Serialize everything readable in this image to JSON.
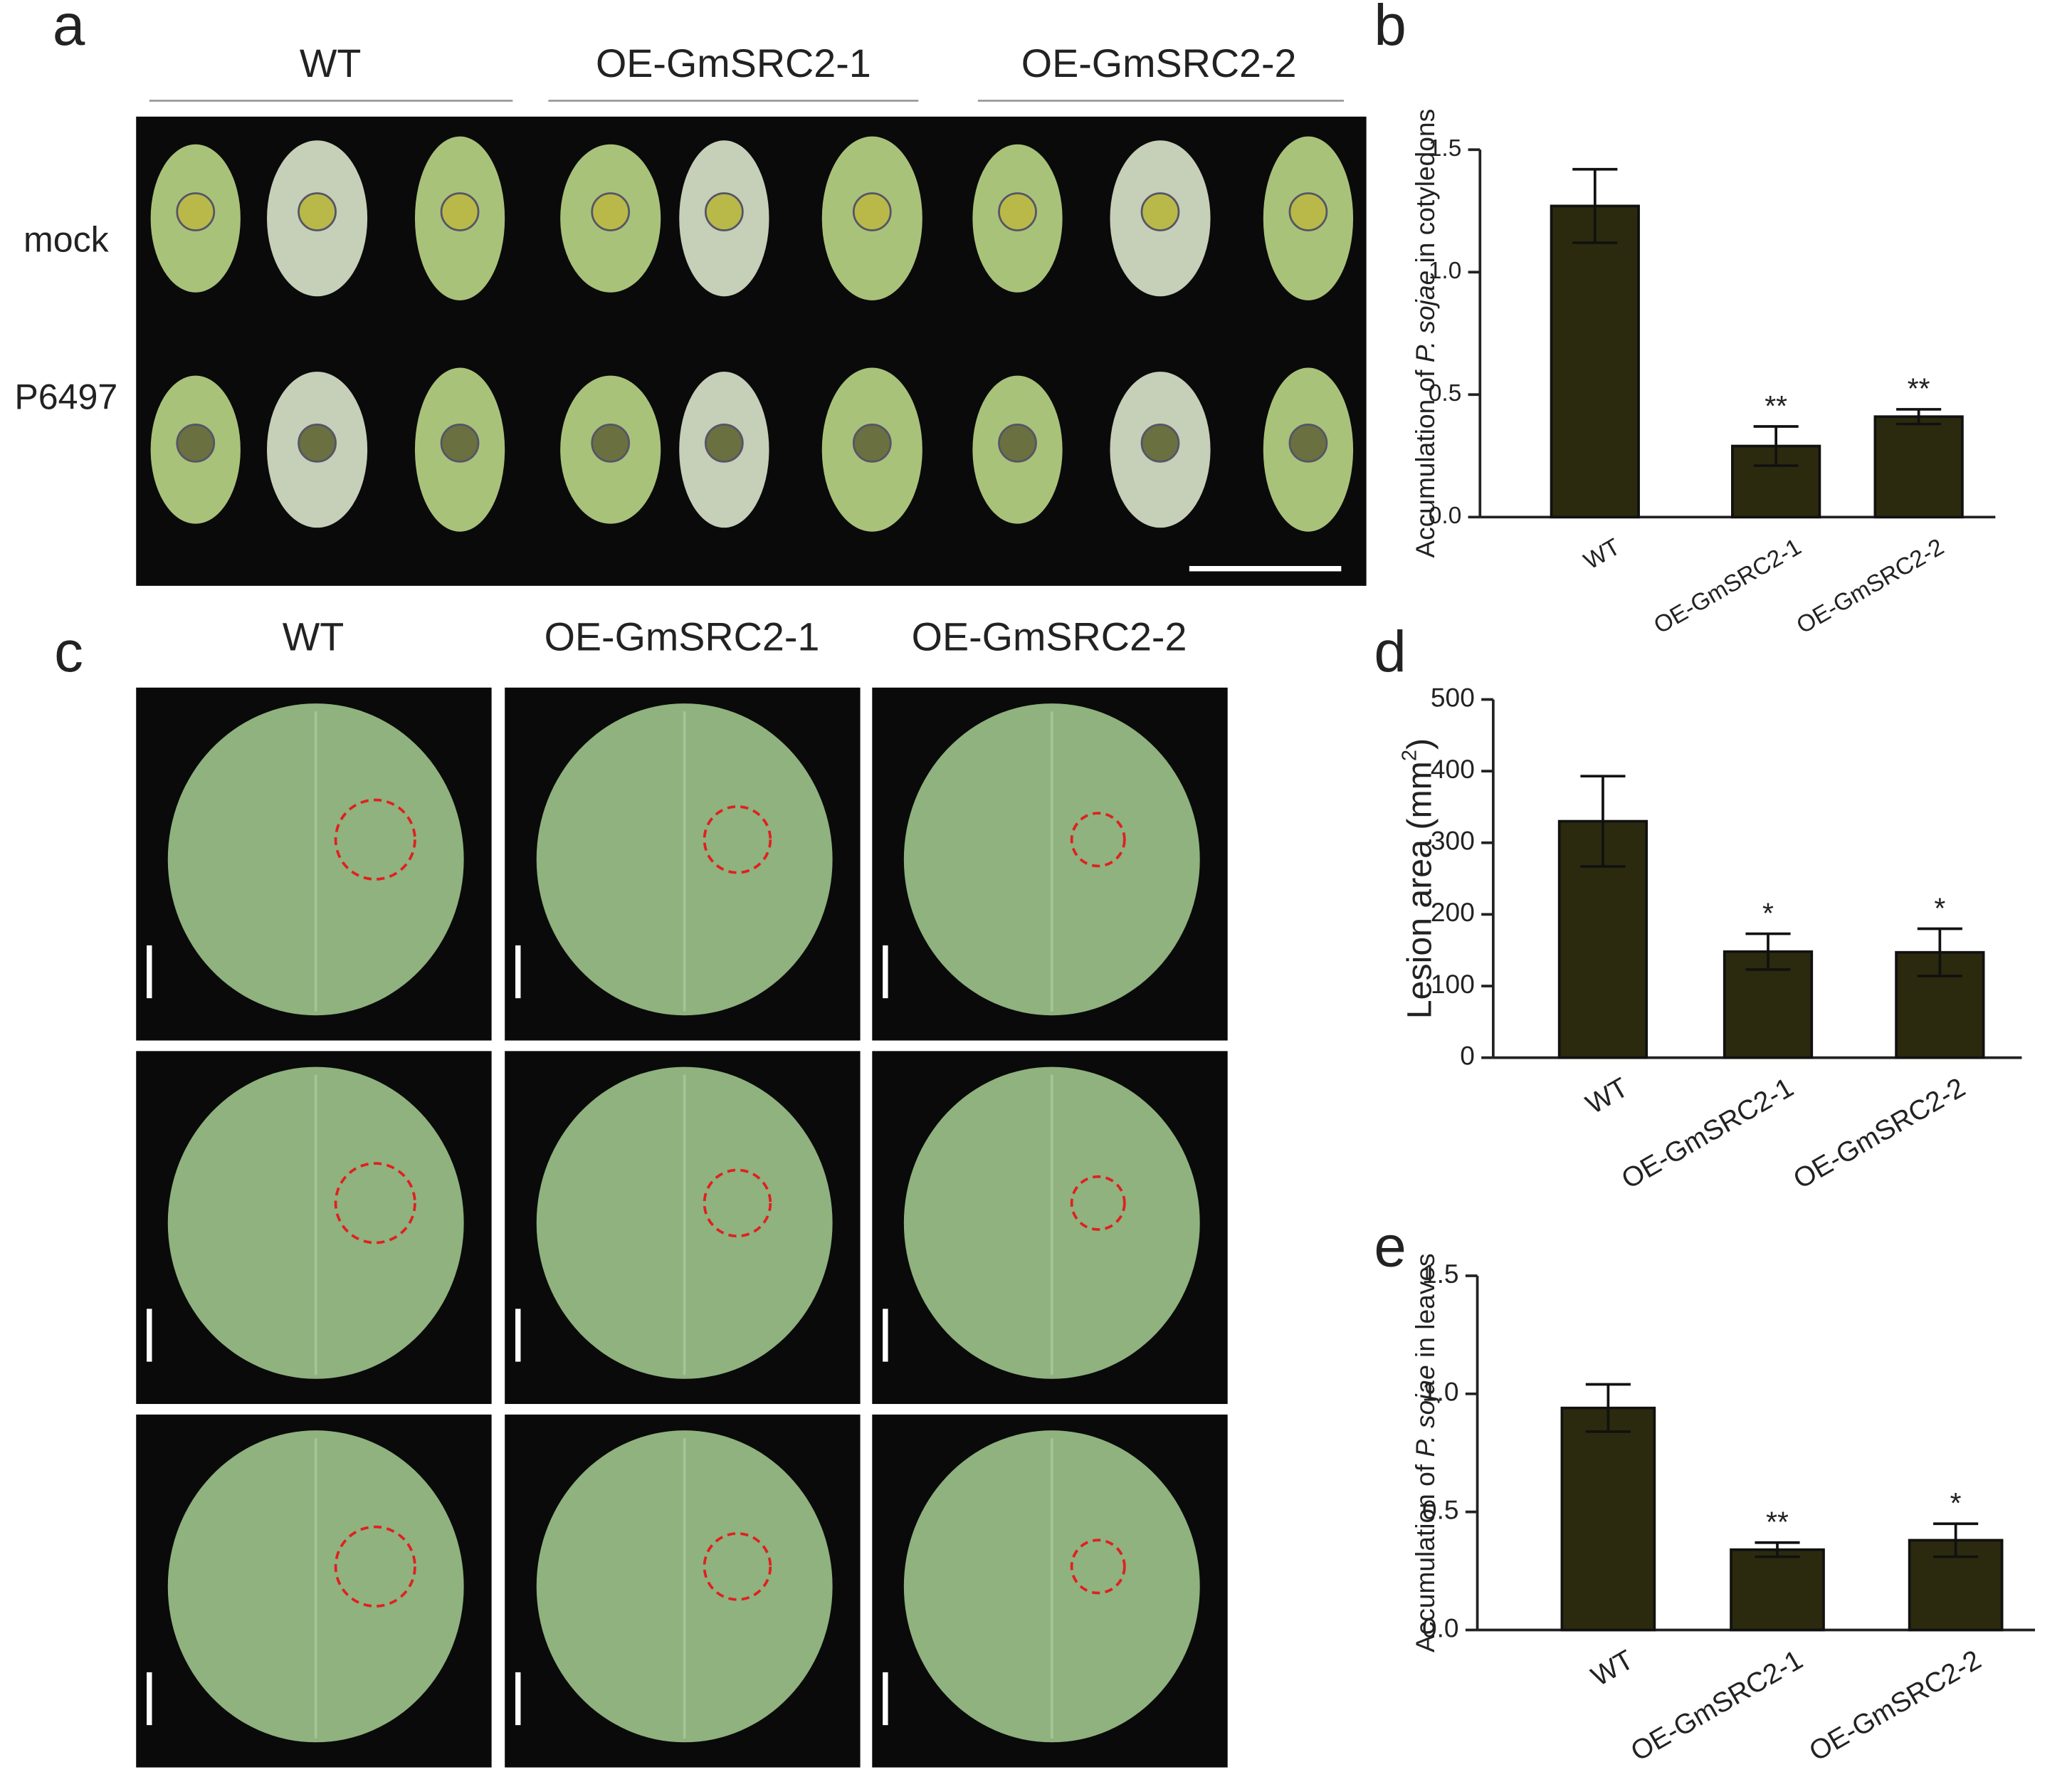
{
  "panels": [
    "a",
    "b",
    "c",
    "d",
    "e"
  ],
  "photo_a": {
    "columns": [
      "WT",
      "OE-GmSRC2-1",
      "OE-GmSRC2-2"
    ],
    "rows": [
      "mock",
      "P6497"
    ]
  },
  "photo_c": {
    "columns": [
      "WT",
      "OE-GmSRC2-1",
      "OE-GmSRC2-2"
    ]
  },
  "chart_data": [
    {
      "type": "bar",
      "ylabel": [
        "Accumulation of ",
        "P. sojae",
        " in  cotyledons"
      ],
      "categories": [
        "WT",
        "OE-GmSRC2-1",
        "OE-GmSRC2-2"
      ],
      "values": [
        1.27,
        0.29,
        0.41
      ],
      "errors": [
        0.15,
        0.08,
        0.03
      ],
      "annotations": [
        null,
        "**",
        "**"
      ],
      "color": "#2c2a0e",
      "ylim": [
        0,
        1.5
      ],
      "yticks": [
        {
          "value": 0,
          "label": "0.0"
        },
        {
          "value": 0.5,
          "label": "0.5"
        },
        {
          "value": 1,
          "label": "1.0"
        },
        {
          "value": 1.5,
          "label": "1.5"
        }
      ]
    },
    {
      "type": "bar",
      "ylabel": [
        "Lesion area (mm",
        "2",
        ")"
      ],
      "categories": [
        "WT",
        "OE-GmSRC2-1",
        "OE-GmSRC2-2"
      ],
      "values": [
        330,
        148,
        147
      ],
      "errors": [
        63,
        25,
        33
      ],
      "annotations": [
        null,
        "*",
        "*"
      ],
      "color": "#2c2a0e",
      "ylim": [
        0,
        500
      ],
      "yticks": [
        0,
        100,
        200,
        300,
        400,
        500
      ]
    },
    {
      "type": "bar",
      "ylabel": [
        "Accumulation of ",
        "P. sojae",
        " in leaves"
      ],
      "categories": [
        "WT",
        "OE-GmSRC2-1",
        "OE-GmSRC2-2"
      ],
      "values": [
        0.94,
        0.34,
        0.38
      ],
      "errors": [
        0.1,
        0.03,
        0.07
      ],
      "annotations": [
        null,
        "**",
        "*"
      ],
      "color": "#2c2a0e",
      "ylim": [
        0,
        1.5
      ],
      "yticks": [
        {
          "value": 0,
          "label": "0.0"
        },
        {
          "value": 0.5,
          "label": "0.5"
        },
        {
          "value": 1,
          "label": "1.0"
        },
        {
          "value": 1.5,
          "label": "1.5"
        }
      ]
    }
  ]
}
